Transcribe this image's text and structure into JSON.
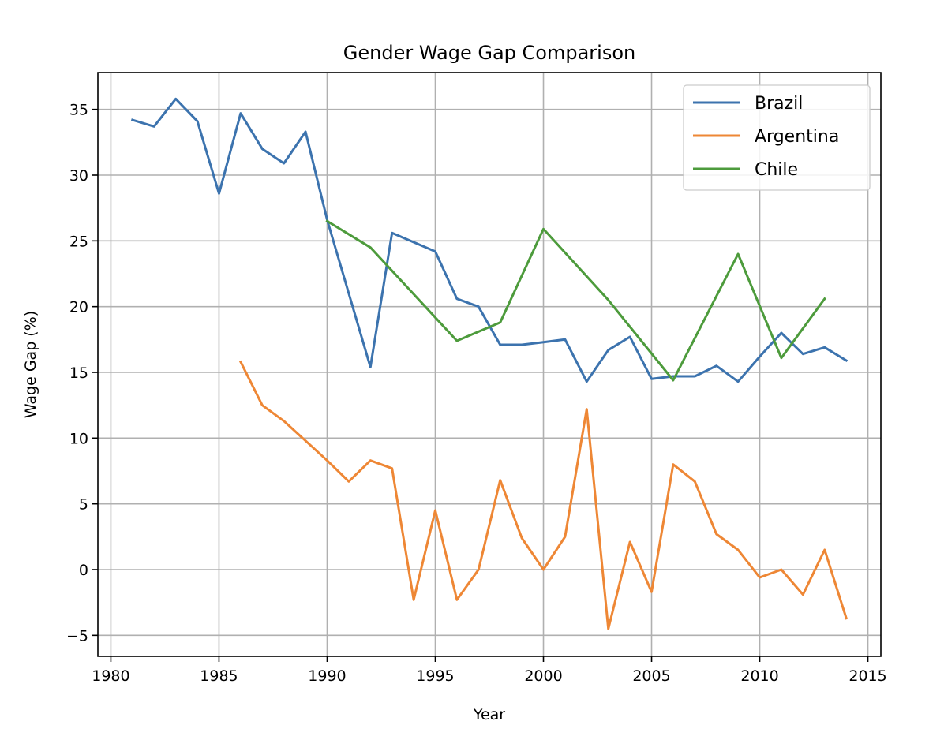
{
  "chart_data": {
    "type": "line",
    "title": "Gender Wage Gap Comparison",
    "xlabel": "Year",
    "ylabel": "Wage Gap (%)",
    "xlim": [
      1979.4,
      2015.6
    ],
    "ylim": [
      -6.6,
      37.8
    ],
    "xticks": [
      1980,
      1985,
      1990,
      1995,
      2000,
      2005,
      2010,
      2015
    ],
    "yticks": [
      -5,
      0,
      5,
      10,
      15,
      20,
      25,
      30,
      35
    ],
    "xtick_labels": [
      "1980",
      "1985",
      "1990",
      "1995",
      "2000",
      "2005",
      "2010",
      "2015"
    ],
    "ytick_labels": [
      "−5",
      "0",
      "5",
      "10",
      "15",
      "20",
      "25",
      "30",
      "35"
    ],
    "grid": true,
    "legend_position": "top-right",
    "series": [
      {
        "name": "Brazil",
        "color": "#3c73ae",
        "x": [
          1981,
          1982,
          1983,
          1984,
          1985,
          1986,
          1987,
          1988,
          1989,
          1990,
          1991,
          1992,
          1993,
          1994,
          1995,
          1996,
          1997,
          1998,
          1999,
          2000,
          2001,
          2002,
          2003,
          2004,
          2005,
          2006,
          2007,
          2008,
          2009,
          2010,
          2011,
          2012,
          2013,
          2014
        ],
        "y": [
          34.2,
          33.7,
          35.8,
          34.1,
          28.6,
          34.7,
          32.0,
          30.9,
          33.3,
          26.6,
          21.0,
          15.4,
          25.6,
          24.9,
          24.2,
          20.6,
          20.0,
          17.1,
          17.1,
          17.3,
          17.5,
          14.3,
          16.7,
          17.7,
          14.5,
          14.7,
          14.7,
          15.5,
          14.3,
          16.2,
          18.0,
          16.4,
          16.9,
          15.9
        ]
      },
      {
        "name": "Argentina",
        "color": "#ee8735",
        "x": [
          1986,
          1987,
          1988,
          1989,
          1990,
          1991,
          1992,
          1993,
          1994,
          1995,
          1996,
          1997,
          1998,
          1999,
          2000,
          2001,
          2002,
          2003,
          2004,
          2005,
          2006,
          2007,
          2008,
          2009,
          2010,
          2011,
          2012,
          2013,
          2014
        ],
        "y": [
          15.8,
          12.5,
          11.3,
          9.8,
          8.3,
          6.7,
          8.3,
          7.7,
          -2.3,
          4.5,
          -2.3,
          0.0,
          6.8,
          2.4,
          0.0,
          2.5,
          12.2,
          -4.5,
          2.1,
          -1.7,
          8.0,
          6.7,
          2.7,
          1.5,
          -0.6,
          0.0,
          -1.9,
          1.5,
          -3.7
        ]
      },
      {
        "name": "Chile",
        "color": "#4d9b3c",
        "x": [
          1990,
          1992,
          1996,
          1998,
          2000,
          2003,
          2006,
          2009,
          2011,
          2013
        ],
        "y": [
          26.5,
          24.5,
          17.4,
          18.8,
          25.9,
          20.5,
          14.4,
          24.0,
          16.1,
          20.6
        ]
      }
    ]
  }
}
